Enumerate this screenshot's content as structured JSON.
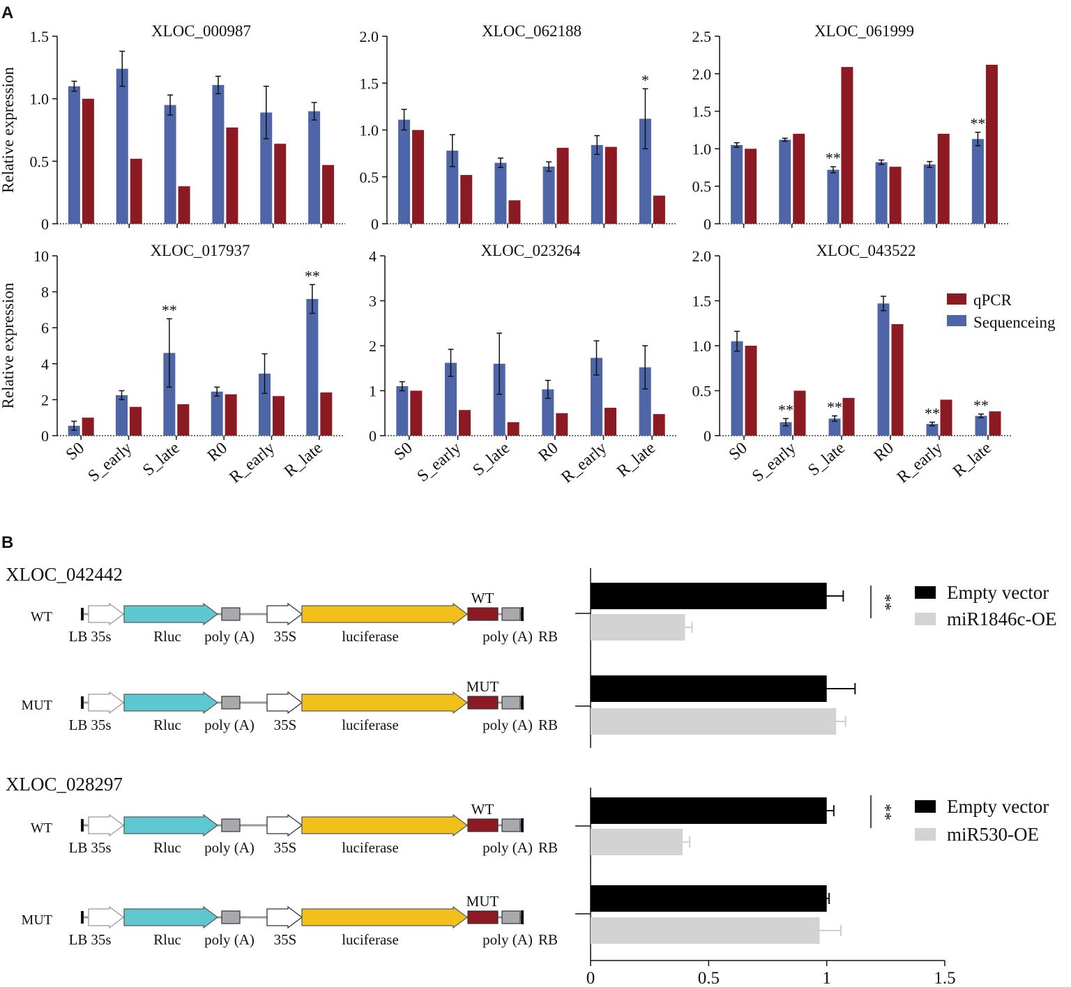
{
  "figure": {
    "panel_a_label": "A",
    "panel_b_label": "B"
  },
  "colors": {
    "qpcr": "#8b1a22",
    "sequencing": "#4e66a8",
    "empty_vector": "#000000",
    "oe": "#d3d3d3",
    "rluc": "#5ec8d0",
    "luciferase": "#f2c01a",
    "target": "#8b1a22",
    "polya": "#a9a9ad"
  },
  "chart_data": [
    {
      "type": "bar",
      "title": "XLOC_000987",
      "ylabel": "Relative expression",
      "categories": [
        "S0",
        "S_early",
        "S_late",
        "R0",
        "R_early",
        "R_late"
      ],
      "ylim": [
        0,
        1.5
      ],
      "yticks": [
        "0",
        "0.5",
        "1.0",
        "1.5"
      ],
      "ytick_values": [
        0,
        0.5,
        1.0,
        1.5
      ],
      "series": [
        {
          "name": "Sequenceing",
          "values": [
            1.1,
            1.24,
            0.95,
            1.11,
            0.89,
            0.9
          ],
          "errors": [
            0.04,
            0.14,
            0.08,
            0.07,
            0.21,
            0.07
          ]
        },
        {
          "name": "qPCR",
          "values": [
            1.0,
            0.52,
            0.3,
            0.77,
            0.64,
            0.47
          ]
        }
      ],
      "annotations": [
        "",
        "",
        "",
        "",
        "",
        ""
      ]
    },
    {
      "type": "bar",
      "title": "XLOC_062188",
      "ylabel": "",
      "categories": [
        "S0",
        "S_early",
        "S_late",
        "R0",
        "R_early",
        "R_late"
      ],
      "ylim": [
        0,
        2.0
      ],
      "yticks": [
        "0",
        "0.5",
        "1.0",
        "1.5",
        "2.0"
      ],
      "ytick_values": [
        0,
        0.5,
        1.0,
        1.5,
        2.0
      ],
      "series": [
        {
          "name": "Sequenceing",
          "values": [
            1.11,
            0.78,
            0.65,
            0.61,
            0.84,
            1.12
          ],
          "errors": [
            0.11,
            0.17,
            0.05,
            0.05,
            0.1,
            0.32
          ]
        },
        {
          "name": "qPCR",
          "values": [
            1.0,
            0.52,
            0.25,
            0.81,
            0.82,
            0.3
          ]
        }
      ],
      "annotations": [
        "",
        "",
        "",
        "",
        "",
        "*"
      ]
    },
    {
      "type": "bar",
      "title": "XLOC_061999",
      "ylabel": "",
      "categories": [
        "S0",
        "S_early",
        "S_late",
        "R0",
        "R_early",
        "R_late"
      ],
      "ylim": [
        0,
        2.5
      ],
      "yticks": [
        "0",
        "0.5",
        "1.0",
        "1.5",
        "2.0",
        "2.5"
      ],
      "ytick_values": [
        0,
        0.5,
        1.0,
        1.5,
        2.0,
        2.5
      ],
      "series": [
        {
          "name": "Sequenceing",
          "values": [
            1.05,
            1.12,
            0.72,
            0.82,
            0.79,
            1.13
          ],
          "errors": [
            0.03,
            0.02,
            0.04,
            0.03,
            0.04,
            0.09
          ]
        },
        {
          "name": "qPCR",
          "values": [
            1.0,
            1.2,
            2.09,
            0.76,
            1.2,
            2.12
          ]
        }
      ],
      "annotations": [
        "",
        "",
        "**",
        "",
        "",
        "**"
      ]
    },
    {
      "type": "bar",
      "title": "XLOC_017937",
      "ylabel": "Relative expression",
      "categories": [
        "S0",
        "S_early",
        "S_late",
        "R0",
        "R_early",
        "R_late"
      ],
      "ylim": [
        0,
        10
      ],
      "yticks": [
        "0",
        "2",
        "4",
        "6",
        "8",
        "10"
      ],
      "ytick_values": [
        0,
        2,
        4,
        6,
        8,
        10
      ],
      "series": [
        {
          "name": "Sequenceing",
          "values": [
            0.55,
            2.25,
            4.6,
            2.45,
            3.45,
            7.6
          ],
          "errors": [
            0.25,
            0.25,
            1.9,
            0.25,
            1.1,
            0.8
          ]
        },
        {
          "name": "qPCR",
          "values": [
            1.0,
            1.6,
            1.75,
            2.3,
            2.2,
            2.4
          ]
        }
      ],
      "annotations": [
        "",
        "",
        "**",
        "",
        "",
        "**"
      ]
    },
    {
      "type": "bar",
      "title": "XLOC_023264",
      "ylabel": "",
      "categories": [
        "S0",
        "S_early",
        "S_late",
        "R0",
        "R_early",
        "R_late"
      ],
      "ylim": [
        0,
        4
      ],
      "yticks": [
        "0",
        "1",
        "2",
        "3",
        "4"
      ],
      "ytick_values": [
        0,
        1,
        2,
        3,
        4
      ],
      "series": [
        {
          "name": "Sequenceing",
          "values": [
            1.1,
            1.62,
            1.6,
            1.03,
            1.73,
            1.52
          ],
          "errors": [
            0.1,
            0.3,
            0.68,
            0.2,
            0.38,
            0.48
          ]
        },
        {
          "name": "qPCR",
          "values": [
            1.0,
            0.57,
            0.3,
            0.5,
            0.62,
            0.48
          ]
        }
      ],
      "annotations": [
        "",
        "",
        "",
        "",
        "",
        ""
      ]
    },
    {
      "type": "bar",
      "title": "XLOC_043522",
      "ylabel": "",
      "categories": [
        "S0",
        "S_early",
        "S_late",
        "R0",
        "R_early",
        "R_late"
      ],
      "ylim": [
        0,
        2.0
      ],
      "yticks": [
        "0",
        "0.5",
        "1.0",
        "1.5",
        "2.0"
      ],
      "ytick_values": [
        0,
        0.5,
        1.0,
        1.5,
        2.0
      ],
      "series": [
        {
          "name": "Sequenceing",
          "values": [
            1.05,
            0.15,
            0.19,
            1.47,
            0.13,
            0.22
          ],
          "errors": [
            0.11,
            0.04,
            0.03,
            0.08,
            0.02,
            0.02
          ]
        },
        {
          "name": "qPCR",
          "values": [
            1.0,
            0.5,
            0.42,
            1.24,
            0.4,
            0.27
          ]
        }
      ],
      "annotations": [
        "",
        "**",
        "**",
        "",
        "**",
        "**"
      ],
      "legend": [
        "qPCR",
        "Sequenceing"
      ]
    },
    {
      "type": "bar",
      "orientation": "horizontal",
      "title": "XLOC_042442",
      "categories": [
        "WT",
        "MUT"
      ],
      "xlim": [
        0,
        1.5
      ],
      "series": [
        {
          "name": "Empty vector",
          "values": [
            1.0,
            1.0
          ],
          "errors": [
            0.07,
            0.12
          ]
        },
        {
          "name": "miR1846c-OE",
          "values": [
            0.4,
            1.04
          ],
          "errors": [
            0.03,
            0.04
          ]
        }
      ],
      "significance": "**"
    },
    {
      "type": "bar",
      "orientation": "horizontal",
      "title": "XLOC_028297",
      "categories": [
        "WT",
        "MUT"
      ],
      "xlim": [
        0,
        1.5
      ],
      "xticks": [
        "0",
        "0.5",
        "1",
        "1.5"
      ],
      "xtick_values": [
        0,
        0.5,
        1,
        1.5
      ],
      "series": [
        {
          "name": "Empty vector",
          "values": [
            1.0,
            1.0
          ],
          "errors": [
            0.03,
            0.01
          ]
        },
        {
          "name": "miR530-OE",
          "values": [
            0.39,
            0.97
          ],
          "errors": [
            0.03,
            0.09
          ]
        }
      ],
      "significance": "**"
    }
  ],
  "constructs": {
    "labels": [
      "LB",
      "35s",
      "Rluc",
      "poly (A)",
      "35S",
      "luciferase",
      "poly (A)",
      "RB"
    ],
    "groups": [
      {
        "title": "XLOC_042442",
        "rows": [
          {
            "name": "WT",
            "site": "WT"
          },
          {
            "name": "MUT",
            "site": "MUT"
          }
        ]
      },
      {
        "title": "XLOC_028297",
        "rows": [
          {
            "name": "WT",
            "site": "WT"
          },
          {
            "name": "MUT",
            "site": "MUT"
          }
        ]
      }
    ]
  }
}
